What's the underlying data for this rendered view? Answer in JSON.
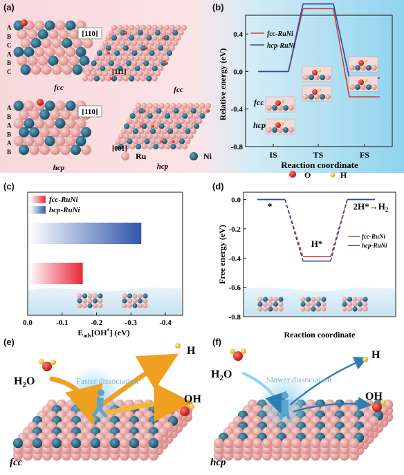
{
  "panel_labels": {
    "a": "(a)",
    "b": "(b)",
    "c": "(c)",
    "d": "(d)",
    "e": "(e)",
    "f": "(f)"
  },
  "panel_a": {
    "stacking_fcc": [
      "A",
      "B",
      "C",
      "A",
      "B",
      "C"
    ],
    "stacking_hcp": [
      "A",
      "B",
      "A",
      "B",
      "A",
      "B"
    ],
    "fcc_side_index": "[110]",
    "hcp_side_index": "[110]",
    "fcc_top_index": "[111]",
    "hcp_top_index": "[001]",
    "fcc_label": "fcc",
    "hcp_label": "hcp",
    "legend_ru": "Ru",
    "legend_ni": "Ni",
    "colors": {
      "ru": "#e59a97",
      "ni": "#1e6a86",
      "o": "#d62020",
      "bg": "#f7dcdc"
    }
  },
  "panel_b": {
    "ylabel": "Relative energy (eV)",
    "xlabel": "Reaction coordinate",
    "yticks": [
      "0.4",
      "0.0",
      "-0.4",
      "-0.8"
    ],
    "legend_o": "O",
    "legend_h": "H",
    "state_fcc": "fcc",
    "state_hcp": "hcp",
    "chart_data": {
      "type": "line",
      "categories": [
        "IS",
        "TS",
        "FS"
      ],
      "ylim": [
        -0.8,
        0.6
      ],
      "series": [
        {
          "name": "fcc-RuNi",
          "color": "#d63a3a",
          "values": [
            0.0,
            0.67,
            -0.27
          ]
        },
        {
          "name": "hcp-RuNi",
          "color": "#2a49a8",
          "values": [
            0.0,
            0.72,
            -0.07
          ]
        }
      ]
    }
  },
  "panel_c": {
    "xlabel_main": "E",
    "xlabel_sub": "ads",
    "xlabel_rest": "[OH",
    "xlabel_sup": "*",
    "xlabel_end": "] (eV)",
    "xticks": [
      "0.0",
      "-0.1",
      "-0.2",
      "-0.3",
      "-0.4"
    ],
    "chart_data": {
      "type": "bar",
      "xlim": [
        0,
        -0.45
      ],
      "series": [
        {
          "name": "fcc-RuNi",
          "color": "#e83a45",
          "value": -0.16
        },
        {
          "name": "hcp-RuNi",
          "color": "#3a60b0",
          "value": -0.33
        }
      ]
    }
  },
  "panel_d": {
    "ylabel": "Free energy (eV)",
    "xlabel": "Reaction coordinate",
    "yticks": [
      "0.0",
      "-0.2",
      "-0.4",
      "-0.6",
      "-0.8"
    ],
    "label_star": "*",
    "label_h": "H*",
    "reaction": "2H*→H",
    "reaction_sub": "2",
    "chart_data": {
      "type": "line",
      "categories": [
        "*",
        "H*",
        "H2"
      ],
      "ylim": [
        -0.8,
        0.05
      ],
      "series": [
        {
          "name": "fcc-RuNi",
          "color": "#d63a3a",
          "values": [
            0.0,
            -0.39,
            0.0
          ]
        },
        {
          "name": "hcp-RuNi",
          "color": "#2a49a8",
          "values": [
            0.0,
            -0.42,
            0.0
          ]
        }
      ]
    }
  },
  "panel_e": {
    "h2o": "H",
    "h2o_sub": "2",
    "h2o_end": "O",
    "caption": "Faster dissociation",
    "h": "H",
    "oh": "OH",
    "surface": "fcc"
  },
  "panel_f": {
    "h2o": "H",
    "h2o_sub": "2",
    "h2o_end": "O",
    "caption": "Slower dissociation",
    "h": "H",
    "oh": "OH",
    "surface": "hcp"
  }
}
